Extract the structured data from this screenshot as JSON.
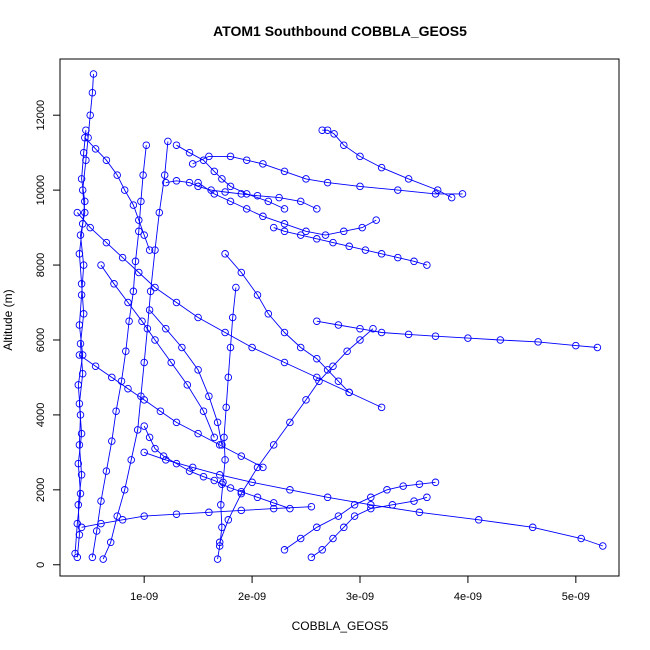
{
  "chart_data": {
    "type": "scatter",
    "title": "ATOM1 Southbound COBBLA_GEOS5",
    "xlabel": "COBBLA_GEOS5",
    "ylabel": "Altitude (m)",
    "xlim": [
      2.2e-10,
      5.4e-09
    ],
    "ylim": [
      -300,
      13500
    ],
    "x_ticks": [
      1e-09,
      2e-09,
      3e-09,
      4e-09,
      5e-09
    ],
    "x_tick_labels": [
      "1e-09",
      "2e-09",
      "3e-09",
      "4e-09",
      "5e-09"
    ],
    "y_ticks": [
      0,
      2000,
      4000,
      6000,
      8000,
      10000,
      12000
    ],
    "y_tick_labels": [
      "0",
      "2000",
      "4000",
      "6000",
      "8000",
      "10000",
      "12000"
    ],
    "marker": "open-circle",
    "line_style": "solid",
    "grid": false,
    "legend": "none",
    "colors": {
      "series": "#0000ff",
      "axis": "#000000",
      "background": "#ffffff"
    },
    "series": [
      {
        "x": [
          3.8e-10,
          4e-10,
          3.9e-10,
          4.2e-10,
          4e-10,
          4.1e-10,
          3.9e-10,
          4.3e-10,
          4e-10,
          4.2e-10,
          4.4e-10,
          4.1e-10,
          4.5e-10,
          4.3e-10,
          4.6e-10,
          4.8e-10,
          5e-10,
          5.2e-10,
          5.3e-10
        ],
        "y": [
          200,
          800,
          1600,
          2400,
          3200,
          4000,
          4800,
          5600,
          6400,
          7200,
          8000,
          8800,
          9400,
          10000,
          10800,
          11400,
          12000,
          12600,
          13100
        ]
      },
      {
        "x": [
          3.6e-10,
          3.8e-10,
          4.1e-10,
          3.9e-10,
          4.2e-10,
          4e-10,
          4.3e-10,
          4.1e-10,
          4.4e-10,
          4.2e-10,
          4e-10,
          4.3e-10,
          4.5e-10,
          4.2e-10,
          4.4e-10,
          4.6e-10
        ],
        "y": [
          300,
          1100,
          1900,
          2700,
          3500,
          4300,
          5100,
          5900,
          6700,
          7500,
          8300,
          9100,
          9700,
          10300,
          11000,
          11600
        ]
      },
      {
        "x": [
          5.2e-10,
          5.6e-10,
          6e-10,
          6.5e-10,
          7e-10,
          7.4e-10,
          7.9e-10,
          8.3e-10,
          8.6e-10,
          9e-10,
          9.2e-10,
          9.5e-10,
          9.7e-10,
          9.9e-10,
          1.02e-09
        ],
        "y": [
          200,
          900,
          1700,
          2500,
          3300,
          4100,
          4900,
          5700,
          6500,
          7300,
          8100,
          8900,
          9700,
          10400,
          11200
        ]
      },
      {
        "x": [
          6.2e-10,
          6.9e-10,
          7.5e-10,
          8.2e-10,
          8.8e-10,
          9.4e-10,
          9.7e-10,
          1e-09,
          1.03e-09,
          1.06e-09,
          1.1e-09,
          1.14e-09,
          1.19e-09,
          1.22e-09
        ],
        "y": [
          150,
          600,
          1300,
          2000,
          2800,
          3600,
          4500,
          5400,
          6300,
          7300,
          8400,
          9400,
          10400,
          11300
        ]
      },
      {
        "x": [
          1e-09,
          1.05e-09,
          1.1e-09,
          1.18e-09,
          1.3e-09,
          1.42e-09,
          1.55e-09,
          1.65e-09,
          1.72e-09,
          1.8e-09,
          1.9e-09,
          2.05e-09,
          2.2e-09,
          2.35e-09
        ],
        "y": [
          3700,
          3400,
          3100,
          2900,
          2700,
          2500,
          2350,
          2250,
          2150,
          2050,
          1950,
          1800,
          1650,
          1500
        ]
      },
      {
        "x": [
          1.68e-09,
          1.7e-09,
          1.72e-09,
          1.71e-09,
          1.73e-09,
          1.75e-09,
          1.74e-09,
          1.76e-09,
          1.78e-09,
          1.8e-09,
          1.82e-09,
          1.85e-09
        ],
        "y": [
          150,
          500,
          1000,
          1600,
          2200,
          2800,
          3400,
          4200,
          5000,
          5800,
          6600,
          7400
        ]
      },
      {
        "x": [
          1.7e-09,
          1.78e-09,
          1.9e-09,
          2.05e-09,
          2.2e-09,
          2.35e-09,
          2.5e-09,
          2.62e-09,
          2.75e-09,
          2.88e-09,
          3e-09,
          3.12e-09
        ],
        "y": [
          600,
          1200,
          1900,
          2600,
          3200,
          3800,
          4400,
          4900,
          5300,
          5700,
          6000,
          6300
        ]
      },
      {
        "x": [
          1.75e-09,
          1.9e-09,
          2.05e-09,
          2.15e-09,
          2.3e-09,
          2.45e-09,
          2.6e-09,
          2.7e-09,
          2.8e-09,
          2.9e-09
        ],
        "y": [
          8300,
          7800,
          7200,
          6700,
          6200,
          5800,
          5500,
          5200,
          4900,
          4600
        ]
      },
      {
        "x": [
          1.5e-09,
          1.65e-09,
          1.8e-09,
          1.95e-09,
          2.1e-09,
          2.3e-09,
          2.5e-09,
          2.68e-09,
          2.85e-09,
          3.02e-09,
          3.15e-09
        ],
        "y": [
          10200,
          9900,
          9700,
          9500,
          9300,
          9100,
          8900,
          8800,
          8900,
          9000,
          9200
        ]
      },
      {
        "x": [
          1.45e-09,
          1.6e-09,
          1.8e-09,
          1.95e-09,
          2.1e-09,
          2.3e-09,
          2.5e-09,
          2.7e-09,
          3e-09,
          3.35e-09,
          3.7e-09,
          3.95e-09
        ],
        "y": [
          10700,
          10900,
          10900,
          10800,
          10700,
          10500,
          10300,
          10200,
          10100,
          10000,
          9900,
          9900
        ]
      },
      {
        "x": [
          2.65e-09,
          2.7e-09,
          2.76e-09,
          2.85e-09,
          3e-09,
          3.2e-09,
          3.45e-09,
          3.72e-09,
          3.85e-09
        ],
        "y": [
          11600,
          11600,
          11500,
          11200,
          10900,
          10600,
          10300,
          10000,
          9800
        ]
      },
      {
        "x": [
          2.6e-09,
          2.8e-09,
          3e-09,
          3.2e-09,
          3.45e-09,
          3.7e-09,
          4e-09,
          4.3e-09,
          4.65e-09,
          5e-09,
          5.2e-09
        ],
        "y": [
          6500,
          6400,
          6300,
          6200,
          6150,
          6100,
          6050,
          6000,
          5950,
          5850,
          5800
        ]
      },
      {
        "x": [
          1e-09,
          1.2e-09,
          1.45e-09,
          1.7e-09,
          2e-09,
          2.35e-09,
          2.7e-09,
          3.1e-09,
          3.55e-09,
          4.1e-09,
          4.6e-09,
          5.05e-09,
          5.25e-09
        ],
        "y": [
          3000,
          2800,
          2600,
          2400,
          2200,
          2000,
          1800,
          1600,
          1400,
          1200,
          1000,
          700,
          500
        ]
      },
      {
        "x": [
          2.55e-09,
          2.65e-09,
          2.75e-09,
          2.85e-09,
          2.95e-09,
          3.1e-09,
          3.3e-09,
          3.5e-09,
          3.62e-09
        ],
        "y": [
          200,
          400,
          700,
          1000,
          1300,
          1500,
          1600,
          1700,
          1800
        ]
      },
      {
        "x": [
          3.8e-10,
          5e-10,
          6.5e-10,
          8e-10,
          9.5e-10,
          1.1e-09,
          1.3e-09,
          1.5e-09,
          1.75e-09,
          2e-09,
          2.3e-09,
          2.6e-09,
          2.9e-09,
          3.2e-09
        ],
        "y": [
          9400,
          9000,
          8600,
          8200,
          7800,
          7400,
          7000,
          6600,
          6200,
          5800,
          5400,
          5000,
          4600,
          4200
        ]
      },
      {
        "x": [
          4e-10,
          5.5e-10,
          7e-10,
          8.5e-10,
          1e-09,
          1.15e-09,
          1.3e-09,
          1.5e-09,
          1.7e-09,
          1.9e-09,
          2.1e-09
        ],
        "y": [
          5600,
          5300,
          5000,
          4700,
          4400,
          4100,
          3800,
          3500,
          3200,
          2900,
          2600
        ]
      },
      {
        "x": [
          1.2e-09,
          1.3e-09,
          1.42e-09,
          1.5e-09,
          1.62e-09,
          1.75e-09,
          1.9e-09,
          2.05e-09,
          2.25e-09,
          2.45e-09,
          2.6e-09
        ],
        "y": [
          10200,
          10250,
          10200,
          10100,
          10000,
          9950,
          9900,
          9850,
          9800,
          9700,
          9500
        ]
      },
      {
        "x": [
          2.2e-09,
          2.3e-09,
          2.45e-09,
          2.6e-09,
          2.75e-09,
          2.9e-09,
          3.05e-09,
          3.2e-09,
          3.35e-09,
          3.5e-09,
          3.62e-09
        ],
        "y": [
          9000,
          8900,
          8800,
          8700,
          8600,
          8500,
          8400,
          8300,
          8200,
          8100,
          8000
        ]
      },
      {
        "x": [
          4.5e-10,
          5.5e-10,
          6.5e-10,
          7.5e-10,
          8.2e-10,
          9e-10,
          9.5e-10,
          1e-09,
          1.05e-09
        ],
        "y": [
          11400,
          11100,
          10800,
          10400,
          10000,
          9600,
          9200,
          8800,
          8400
        ]
      },
      {
        "x": [
          1.3e-09,
          1.42e-09,
          1.55e-09,
          1.65e-09,
          1.72e-09,
          1.8e-09,
          1.95e-09,
          2.15e-09,
          2.3e-09
        ],
        "y": [
          11200,
          11000,
          10800,
          10500,
          10300,
          10100,
          9900,
          9700,
          9500
        ]
      },
      {
        "x": [
          1.05e-09,
          1.2e-09,
          1.35e-09,
          1.5e-09,
          1.6e-09,
          1.68e-09,
          1.72e-09
        ],
        "y": [
          6800,
          6300,
          5800,
          5200,
          4500,
          3800,
          3200
        ]
      },
      {
        "x": [
          6e-10,
          7.2e-10,
          8.5e-10,
          9.8e-10,
          1.1e-09,
          1.25e-09,
          1.4e-09,
          1.55e-09,
          1.65e-09
        ],
        "y": [
          8000,
          7500,
          7000,
          6500,
          6000,
          5400,
          4800,
          4100,
          3400
        ]
      },
      {
        "x": [
          2.3e-09,
          2.45e-09,
          2.6e-09,
          2.8e-09,
          2.95e-09,
          3.1e-09,
          3.25e-09,
          3.4e-09,
          3.55e-09,
          3.7e-09
        ],
        "y": [
          400,
          700,
          1000,
          1300,
          1600,
          1800,
          2000,
          2100,
          2150,
          2200
        ]
      },
      {
        "x": [
          4.2e-10,
          6e-10,
          8e-10,
          1e-09,
          1.3e-09,
          1.6e-09,
          1.9e-09,
          2.2e-09,
          2.55e-09
        ],
        "y": [
          1000,
          1100,
          1200,
          1300,
          1350,
          1400,
          1450,
          1500,
          1550
        ]
      }
    ]
  }
}
